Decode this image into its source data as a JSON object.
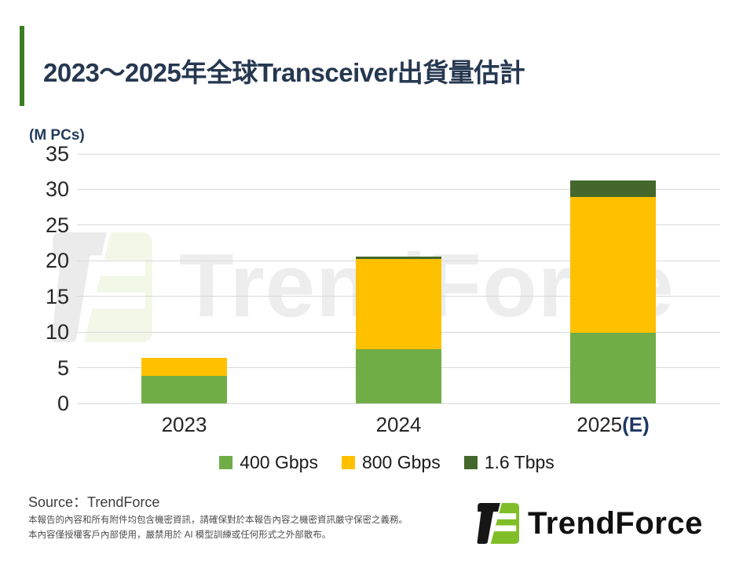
{
  "header": {
    "title": "2023～2025年全球Transceiver出貨量估計"
  },
  "axis": {
    "unit_label": "(M PCs)",
    "yticks": [
      35,
      30,
      25,
      20,
      15,
      10,
      5,
      0
    ]
  },
  "chart_data": {
    "type": "bar",
    "stacked": true,
    "title": "2023～2025年全球Transceiver出貨量估計",
    "ylabel": "(M PCs)",
    "ylim": [
      0,
      35
    ],
    "ytick_step": 5,
    "grid": true,
    "legend_position": "bottom",
    "categories": [
      "2023",
      "2024",
      "2025(E)"
    ],
    "series": [
      {
        "name": "400 Gbps",
        "color": "#70AD47",
        "values": [
          3.8,
          7.6,
          9.9
        ]
      },
      {
        "name": "800 Gbps",
        "color": "#FFC000",
        "values": [
          2.6,
          12.6,
          19.1
        ]
      },
      {
        "name": "1.6 Tbps",
        "color": "#44682B",
        "values": [
          0,
          0.4,
          2.3
        ]
      }
    ],
    "totals": [
      6.4,
      20.6,
      31.3
    ]
  },
  "watermark": {
    "text": "TrendForce"
  },
  "footer": {
    "source": "Source：TrendForce",
    "disclaimer": [
      "本報告的內容和所有附件均包含機密資訊，請確保對於本報告內容之機密資訊嚴守保密之義務。",
      "本內容僅授權客戶內部使用，嚴禁用於 AI 模型訓練或任何形式之外部散布。"
    ],
    "logo_text": "TrendForce"
  },
  "colors": {
    "accent_bar": "#3A7D23",
    "title_text": "#263850",
    "unit_label_text": "#243B5A",
    "axis_text": "#262626",
    "estimate_suffix": "#1F3864",
    "gridline": "#D9D9D9",
    "series_400g": "#70AD47",
    "series_800g": "#FFC000",
    "series_1_6t": "#44682B",
    "logo_green": "#80BE28",
    "logo_black": "#161616",
    "watermark_gray": "#EBEBEB",
    "watermark_green": "#F3F7E8",
    "watermark_text": "#EDEDED"
  }
}
